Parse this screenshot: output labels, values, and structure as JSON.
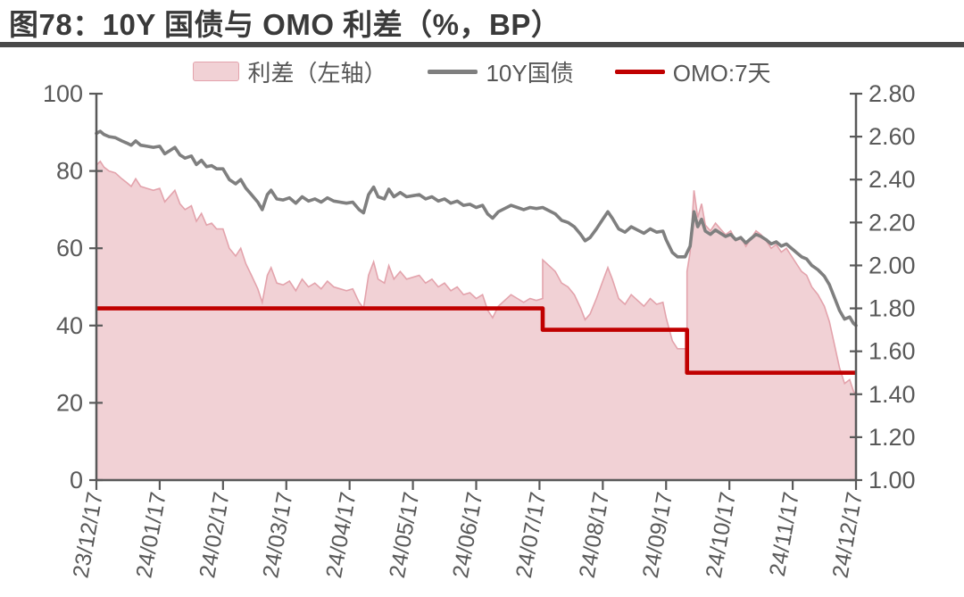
{
  "page": {
    "title": "图78：10Y 国债与 OMO 利差（%，BP）"
  },
  "legend": [
    {
      "label": "利差（左轴）",
      "type": "area",
      "color": "#f1d1d5",
      "border": "#e3a3ac"
    },
    {
      "label": "10Y国债",
      "type": "line",
      "color": "#7f7f7f"
    },
    {
      "label": "OMO:7天",
      "type": "line",
      "color": "#c00000"
    }
  ],
  "chart_data": {
    "type": "area+line combo (dual axis)",
    "title": "图78：10Y 国债与 OMO 利差（%，BP）",
    "x_axis": {
      "unit": "date",
      "range_months": [
        0,
        12
      ],
      "labels": [
        "23/12/17",
        "24/01/17",
        "24/02/17",
        "24/03/17",
        "24/04/17",
        "24/05/17",
        "24/06/17",
        "24/07/17",
        "24/08/17",
        "24/09/17",
        "24/10/17",
        "24/11/17",
        "24/12/17"
      ]
    },
    "left_axis": {
      "min": 0,
      "max": 100,
      "ticks": [
        100,
        80,
        60,
        40,
        20,
        0
      ]
    },
    "right_axis": {
      "min": 1.0,
      "max": 2.8,
      "ticks": [
        2.8,
        2.6,
        2.4,
        2.2,
        2.0,
        1.8,
        1.6,
        1.4,
        1.2,
        1.0
      ]
    },
    "grid": false,
    "legend_position": "top-center",
    "series": [
      {
        "name": "利差（左轴）",
        "type": "area",
        "axis": "left",
        "fill": "#f1d1d5",
        "edge": "#e3a3ac",
        "x": [
          0,
          0.06,
          0.12,
          0.2,
          0.3,
          0.4,
          0.48,
          0.55,
          0.62,
          0.7,
          0.8,
          0.9,
          1,
          1.08,
          1.16,
          1.24,
          1.32,
          1.4,
          1.5,
          1.58,
          1.66,
          1.74,
          1.82,
          1.9,
          2,
          2.1,
          2.2,
          2.28,
          2.36,
          2.45,
          2.55,
          2.62,
          2.7,
          2.76,
          2.85,
          2.95,
          3.05,
          3.15,
          3.25,
          3.35,
          3.45,
          3.55,
          3.65,
          3.75,
          3.85,
          3.95,
          4.05,
          4.15,
          4.22,
          4.3,
          4.38,
          4.45,
          4.55,
          4.62,
          4.7,
          4.8,
          4.9,
          5,
          5.1,
          5.2,
          5.3,
          5.4,
          5.5,
          5.6,
          5.7,
          5.8,
          5.9,
          6,
          6.1,
          6.18,
          6.26,
          6.35,
          6.45,
          6.55,
          6.65,
          6.75,
          6.85,
          6.95,
          7.05,
          7.05,
          7.15,
          7.25,
          7.35,
          7.45,
          7.55,
          7.65,
          7.72,
          7.8,
          7.9,
          8,
          8.08,
          8.15,
          8.25,
          8.35,
          8.45,
          8.55,
          8.65,
          8.75,
          8.85,
          8.95,
          9,
          9.05,
          9.1,
          9.18,
          9.3,
          9.33,
          9.33,
          9.38,
          9.44,
          9.5,
          9.56,
          9.62,
          9.7,
          9.78,
          9.86,
          9.94,
          10.02,
          10.1,
          10.18,
          10.26,
          10.34,
          10.42,
          10.5,
          10.58,
          10.66,
          10.74,
          10.82,
          10.9,
          10.98,
          11.06,
          11.14,
          11.22,
          11.3,
          11.4,
          11.5,
          11.58,
          11.66,
          11.74,
          11.82,
          11.9,
          11.96,
          12
        ],
        "values": [
          81.5,
          82.5,
          81,
          80,
          79.5,
          78,
          77,
          76,
          78,
          76,
          75.5,
          75,
          75.5,
          72,
          73.5,
          75,
          71.5,
          70,
          71,
          67,
          69,
          66,
          66.5,
          65,
          65,
          60,
          58,
          60,
          56,
          53,
          49.5,
          46,
          53,
          55,
          51,
          50.5,
          51.5,
          49,
          52,
          50,
          51,
          49.5,
          51.5,
          50,
          49.5,
          49,
          49.5,
          46,
          44.5,
          53,
          56.5,
          52,
          51,
          55.5,
          52,
          54,
          52,
          52.5,
          53,
          51,
          52,
          50,
          51,
          49,
          50,
          48,
          48.5,
          47,
          48,
          44,
          42,
          45,
          46.5,
          48,
          47,
          46,
          47,
          46.5,
          47,
          57,
          55.5,
          54,
          51,
          50,
          48,
          44.5,
          41.5,
          43,
          47,
          51.5,
          55,
          52,
          47,
          45.5,
          48,
          46.5,
          45,
          47,
          45.5,
          46,
          42,
          39,
          36,
          34,
          34,
          34,
          54,
          59,
          75,
          68,
          71.5,
          66,
          64.5,
          66.5,
          65,
          63.5,
          64.5,
          62,
          63,
          60.5,
          62.5,
          64.5,
          63.5,
          62,
          60,
          61,
          59,
          60,
          58,
          56,
          54,
          53,
          50,
          48,
          45,
          41,
          35,
          29,
          25,
          26,
          23,
          22
        ]
      },
      {
        "name": "10Y国债",
        "type": "line",
        "axis": "right",
        "color": "#7f7f7f",
        "x": [
          0,
          0.06,
          0.12,
          0.2,
          0.3,
          0.4,
          0.48,
          0.55,
          0.62,
          0.7,
          0.8,
          0.9,
          1,
          1.08,
          1.16,
          1.24,
          1.32,
          1.4,
          1.5,
          1.58,
          1.66,
          1.74,
          1.82,
          1.9,
          2,
          2.1,
          2.2,
          2.28,
          2.36,
          2.45,
          2.55,
          2.62,
          2.7,
          2.76,
          2.85,
          2.95,
          3.05,
          3.15,
          3.25,
          3.35,
          3.45,
          3.55,
          3.65,
          3.75,
          3.85,
          3.95,
          4.05,
          4.15,
          4.22,
          4.3,
          4.38,
          4.45,
          4.55,
          4.62,
          4.7,
          4.8,
          4.9,
          5,
          5.1,
          5.2,
          5.3,
          5.4,
          5.5,
          5.6,
          5.7,
          5.8,
          5.9,
          6,
          6.1,
          6.18,
          6.26,
          6.35,
          6.45,
          6.55,
          6.65,
          6.75,
          6.85,
          6.95,
          7.05,
          7.15,
          7.25,
          7.35,
          7.45,
          7.55,
          7.65,
          7.72,
          7.8,
          7.9,
          8,
          8.08,
          8.15,
          8.25,
          8.35,
          8.45,
          8.55,
          8.65,
          8.75,
          8.85,
          8.95,
          9,
          9.05,
          9.1,
          9.18,
          9.3,
          9.38,
          9.44,
          9.5,
          9.56,
          9.62,
          9.7,
          9.78,
          9.86,
          9.94,
          10.02,
          10.1,
          10.18,
          10.26,
          10.34,
          10.42,
          10.5,
          10.58,
          10.66,
          10.74,
          10.82,
          10.9,
          10.98,
          11.06,
          11.14,
          11.22,
          11.3,
          11.4,
          11.5,
          11.58,
          11.66,
          11.74,
          11.82,
          11.9,
          11.96,
          12
        ],
        "values": [
          2.615,
          2.625,
          2.61,
          2.6,
          2.595,
          2.58,
          2.57,
          2.56,
          2.58,
          2.56,
          2.555,
          2.55,
          2.555,
          2.52,
          2.535,
          2.55,
          2.515,
          2.5,
          2.51,
          2.47,
          2.49,
          2.46,
          2.465,
          2.45,
          2.45,
          2.4,
          2.38,
          2.4,
          2.36,
          2.33,
          2.295,
          2.26,
          2.33,
          2.35,
          2.31,
          2.305,
          2.315,
          2.29,
          2.32,
          2.3,
          2.31,
          2.295,
          2.315,
          2.3,
          2.295,
          2.29,
          2.295,
          2.26,
          2.245,
          2.33,
          2.365,
          2.32,
          2.31,
          2.355,
          2.32,
          2.34,
          2.32,
          2.325,
          2.33,
          2.31,
          2.32,
          2.3,
          2.31,
          2.29,
          2.3,
          2.28,
          2.285,
          2.27,
          2.28,
          2.24,
          2.22,
          2.25,
          2.265,
          2.28,
          2.27,
          2.26,
          2.27,
          2.265,
          2.27,
          2.255,
          2.24,
          2.21,
          2.2,
          2.18,
          2.145,
          2.115,
          2.13,
          2.17,
          2.215,
          2.25,
          2.22,
          2.17,
          2.155,
          2.18,
          2.165,
          2.15,
          2.17,
          2.155,
          2.16,
          2.12,
          2.09,
          2.06,
          2.04,
          2.04,
          2.09,
          2.25,
          2.18,
          2.215,
          2.16,
          2.145,
          2.165,
          2.15,
          2.135,
          2.145,
          2.12,
          2.13,
          2.105,
          2.125,
          2.145,
          2.135,
          2.12,
          2.1,
          2.11,
          2.09,
          2.1,
          2.08,
          2.06,
          2.04,
          2.03,
          2,
          1.98,
          1.95,
          1.91,
          1.85,
          1.79,
          1.75,
          1.76,
          1.73,
          1.72
        ]
      },
      {
        "name": "OMO:7天",
        "type": "line",
        "axis": "right",
        "color": "#c00000",
        "x": [
          0,
          7.05,
          7.05,
          9.33,
          9.33,
          12
        ],
        "values": [
          1.8,
          1.8,
          1.7,
          1.7,
          1.5,
          1.5
        ]
      }
    ]
  }
}
